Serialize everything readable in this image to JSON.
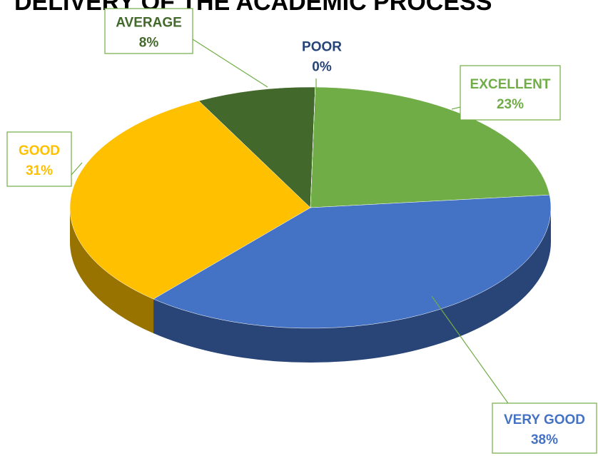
{
  "chart_data": {
    "type": "pie",
    "title": "DELIVERY OF THE ACADEMIC PROCESS",
    "categories": [
      "EXCELLENT",
      "VERY GOOD",
      "GOOD",
      "AVERAGE",
      "POOR"
    ],
    "values": [
      23,
      38,
      31,
      8,
      0
    ],
    "value_labels": [
      "23%",
      "38%",
      "31%",
      "8%",
      "0%"
    ],
    "colors": [
      "#70ad47",
      "#4472c4",
      "#ffc000",
      "#43682b",
      "#264478"
    ],
    "label_colors": [
      "#70ad47",
      "#4472c4",
      "#ffc000",
      "#43682b",
      "#264478"
    ]
  }
}
